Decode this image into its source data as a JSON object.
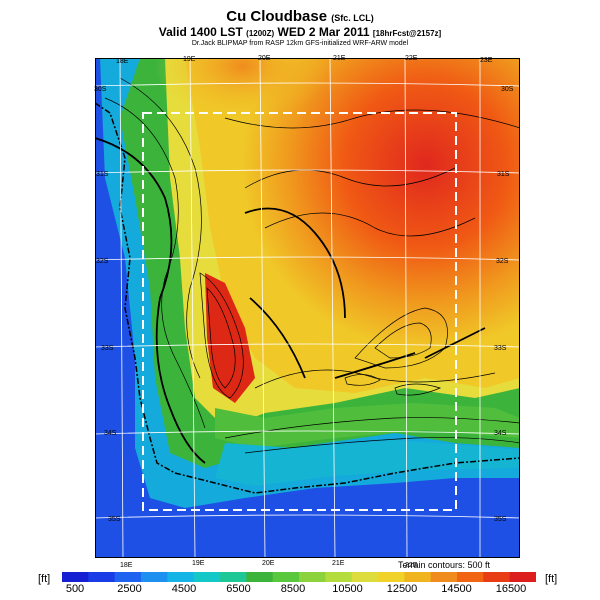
{
  "title": {
    "main": "Cu Cloudbase",
    "main_suffix": "(Sfc. LCL)"
  },
  "subtitle": {
    "valid": "Valid 1400 LST",
    "valid_code": "(1200Z)",
    "date": "WED 2 Mar 2011",
    "run": "[18hrFcst@2157z]"
  },
  "credit": "Dr.Jack BLIPMAP from RASP 12km GFS-initialized WRF-ARW model",
  "map": {
    "lon_labels_top": [
      "18E",
      "19E",
      "20E",
      "21E",
      "22E",
      "23E"
    ],
    "lon_labels_bottom": [
      "18E",
      "19E",
      "20E",
      "21E",
      "22E"
    ],
    "lat_labels_left": [
      "30S",
      "31S",
      "32S",
      "33S",
      "34S",
      "35S"
    ],
    "lat_labels_right": [
      "30S",
      "31S",
      "32S",
      "33S",
      "34S",
      "35S"
    ]
  },
  "terrain_note": "Terrain contours: 500 ft",
  "scale": {
    "unit_left": "[ft]",
    "unit_right": "[ft]",
    "ticks": [
      "500",
      "2500",
      "4500",
      "6500",
      "8500",
      "10500",
      "12500",
      "14500",
      "16500"
    ],
    "colors": [
      "#1420d2",
      "#1a3ce6",
      "#1e64f0",
      "#1e90f0",
      "#14b4e6",
      "#14c8c8",
      "#1ec896",
      "#3cb43c",
      "#5ac83c",
      "#8cd23c",
      "#b4dc3c",
      "#dcdc3c",
      "#f0d228",
      "#f0b41e",
      "#f08c1e",
      "#f06414",
      "#e83c14",
      "#dc1e1e"
    ]
  }
}
